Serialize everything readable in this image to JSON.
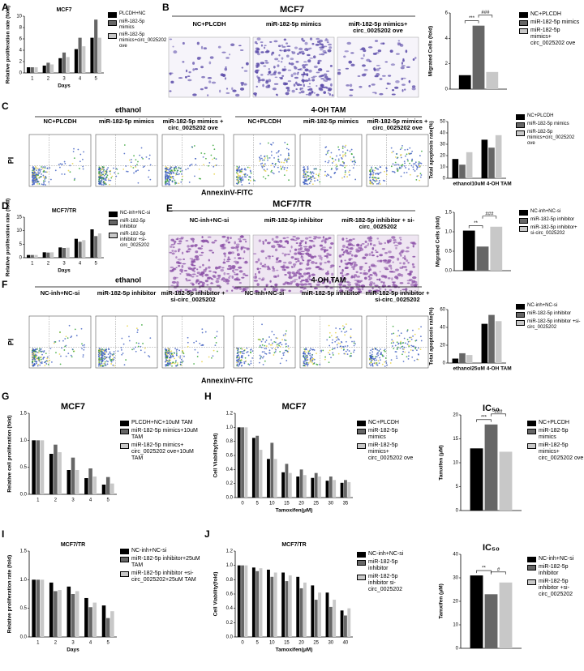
{
  "panel_labels": [
    "A",
    "B",
    "C",
    "D",
    "E",
    "F",
    "G",
    "H",
    "I",
    "J"
  ],
  "image_panels": [
    {
      "title": "MCF7",
      "labels": [
        "NC+PLCDH",
        "miR-182-5p mimics",
        "miR-182-5p mimics+ circ_0025202 ove"
      ]
    },
    {
      "title": "MCF7/TR",
      "labels": [
        "NC-inh+NC-si",
        "miR-182-5p inhibitor",
        "miR-182-5p inhibitor + si-circ_0025202"
      ]
    }
  ],
  "flow_panels": [
    {
      "groups": [
        "ethanol",
        "4-OH TAM"
      ],
      "labels": [
        "NC+PLCDH",
        "miR-182-5p mimics",
        "miR-182-5p mimics + circ_0025202 ove",
        "NC+PLCDH",
        "miR-182-5p mimics",
        "miR-182-5p mimics + circ_0025202 ove"
      ],
      "y_label": "PI",
      "x_label": "AnnexinV-FITC"
    },
    {
      "groups": [
        "ethanol",
        "4-OH TAM"
      ],
      "labels": [
        "NC-inh+NC-si",
        "miR-182-5p inhibitor",
        "miR-182-5p inhibitor + si-circ_0025202",
        "NC-inh+NC-si",
        "miR-182-5p inhibitor",
        "miR-182-5p inhibitor + si-circ_0025202"
      ],
      "y_label": "PI",
      "x_label": "AnnexinV-FITC"
    }
  ],
  "chart_data": [
    {
      "type": "bar",
      "title": "MCF7",
      "y_label": "Relative proliferation rate (fold)",
      "x_label": "Days",
      "categories": [
        "1",
        "2",
        "3",
        "4",
        "5"
      ],
      "ylim": [
        0,
        10
      ],
      "yticks": [
        0,
        2,
        4,
        6,
        8,
        10
      ],
      "series": [
        {
          "name": "PLCDH+NC",
          "color": "#000000",
          "values": [
            1,
            1.3,
            2.6,
            4.2,
            6.2
          ]
        },
        {
          "name": "miR-182-5p mimics",
          "color": "#666666",
          "values": [
            1,
            1.8,
            3.6,
            6.2,
            9.4
          ]
        },
        {
          "name": "miR-182-5p mimics+circ_0025202 ove",
          "color": "#c8c8c8",
          "values": [
            1,
            1.5,
            2.8,
            4.7,
            6.2
          ]
        }
      ]
    },
    {
      "type": "bar",
      "y_label": "Migrated Cells (fold)",
      "categories": [
        null
      ],
      "ylim": [
        0,
        6
      ],
      "yticks": [
        0,
        2,
        4,
        6
      ],
      "annotations": [
        "***",
        "###"
      ],
      "series": [
        {
          "name": "NC+PLCDH",
          "color": "#000000",
          "values": [
            1.1
          ]
        },
        {
          "name": "miR-182-5p mimics",
          "color": "#666666",
          "values": [
            5.0
          ]
        },
        {
          "name": "miR-182-5p mimics+ circ_0025202 ove",
          "color": "#c8c8c8",
          "values": [
            1.35
          ]
        }
      ]
    },
    {
      "type": "bar",
      "y_label": "Total apoptosis rate(%)",
      "categories": [
        "ethanol",
        "10uM 4-OH TAM"
      ],
      "ylim": [
        0,
        50
      ],
      "yticks": [
        0,
        10,
        20,
        30,
        40,
        50
      ],
      "series": [
        {
          "name": "NC+PLCDH",
          "color": "#000000",
          "values": [
            17,
            34
          ]
        },
        {
          "name": "miR-182-5p mimics",
          "color": "#666666",
          "values": [
            12,
            27
          ]
        },
        {
          "name": "miR-182-5p mimics+circ_0025202 ove",
          "color": "#c8c8c8",
          "values": [
            23,
            38
          ]
        }
      ]
    },
    {
      "type": "bar",
      "title": "MCF7/TR",
      "y_label": "Relative proliferation rate (fold)",
      "x_label": "Days",
      "categories": [
        "1",
        "2",
        "3",
        "4",
        "5"
      ],
      "ylim": [
        0,
        15
      ],
      "yticks": [
        0,
        5,
        10,
        15
      ],
      "series": [
        {
          "name": "NC-inh+NC-si",
          "color": "#000000",
          "values": [
            1,
            2,
            3.8,
            7,
            10.5
          ]
        },
        {
          "name": "miR-182-5p inhibitor",
          "color": "#666666",
          "values": [
            1,
            1.9,
            3.6,
            5.9,
            8
          ]
        },
        {
          "name": "miR-182-5p inhibitor +si-circ_0025202",
          "color": "#c8c8c8",
          "values": [
            1,
            2,
            3.7,
            6.5,
            9
          ]
        }
      ]
    },
    {
      "type": "bar",
      "y_label": "Migrated Cells (fold)",
      "categories": [
        null
      ],
      "ylim": [
        0,
        1.5
      ],
      "yticks": [
        {
          "value": 0,
          "label": "0.0"
        },
        0.5,
        {
          "value": 1,
          "label": "1.0"
        },
        1.5
      ],
      "annotations": [
        "**",
        "###"
      ],
      "series": [
        {
          "name": "NC-inh+NC-si",
          "color": "#000000",
          "values": [
            1.03
          ]
        },
        {
          "name": "miR-182-5p inhibitor",
          "color": "#666666",
          "values": [
            0.62
          ]
        },
        {
          "name": "miR-182-5p inhibitor+ si-circ_0025202",
          "color": "#c8c8c8",
          "values": [
            1.13
          ]
        }
      ]
    },
    {
      "type": "bar",
      "y_label": "Total apoptosis rate(%)",
      "categories": [
        "ethanol",
        "25uM 4-OH TAM"
      ],
      "ylim": [
        0,
        60
      ],
      "yticks": [
        0,
        20,
        40,
        60
      ],
      "series": [
        {
          "name": "NC-inh+NC-si",
          "color": "#000000",
          "values": [
            5,
            44
          ]
        },
        {
          "name": "miR-182-5p inhibitor",
          "color": "#666666",
          "values": [
            11,
            54
          ]
        },
        {
          "name": "miR-182-5p inhibitor +si-circ_0025202",
          "color": "#c8c8c8",
          "values": [
            9,
            47
          ]
        }
      ]
    },
    {
      "type": "bar",
      "title": "MCF7",
      "y_label": "Relative cell proliferation (fold)",
      "categories": [
        "1",
        "2",
        "3",
        "4",
        "5"
      ],
      "ylim": [
        0,
        1.5
      ],
      "yticks": [
        {
          "value": 0,
          "label": "0.0"
        },
        0.5,
        {
          "value": 1,
          "label": "1.0"
        },
        1.5
      ],
      "series": [
        {
          "name": "PLCDH+NC+10uM TAM",
          "color": "#000000",
          "values": [
            1,
            0.75,
            0.45,
            0.3,
            0.18
          ]
        },
        {
          "name": "miR-182-5p mimics+10uM TAM",
          "color": "#666666",
          "values": [
            1,
            0.92,
            0.68,
            0.48,
            0.32
          ]
        },
        {
          "name": "miR-182-5p mimics+ circ_0025202 ove+10uM TAM",
          "color": "#c8c8c8",
          "values": [
            1,
            0.78,
            0.45,
            0.33,
            0.2
          ]
        }
      ]
    },
    {
      "type": "bar",
      "title": "MCF7",
      "y_label": "Cell Viability(fold)",
      "x_label": "Tamoxifen(μM)",
      "categories": [
        "0",
        "5",
        "10",
        "15",
        "20",
        "25",
        "30",
        "35"
      ],
      "ylim": [
        0,
        1.2
      ],
      "yticks": [
        {
          "value": 0,
          "label": "0.0"
        },
        0.2,
        0.4,
        0.6,
        0.8,
        {
          "value": 1,
          "label": "1.0"
        },
        1.2
      ],
      "series": [
        {
          "name": "NC+PLCDH",
          "color": "#000000",
          "values": [
            1,
            0.85,
            0.55,
            0.36,
            0.3,
            0.28,
            0.24,
            0.21
          ]
        },
        {
          "name": "miR-182-5p mimics",
          "color": "#666666",
          "values": [
            1,
            0.88,
            0.78,
            0.48,
            0.4,
            0.35,
            0.3,
            0.25
          ]
        },
        {
          "name": "miR-182-5p mimics+ circ_0025202 ove",
          "color": "#c8c8c8",
          "values": [
            1,
            0.68,
            0.55,
            0.35,
            0.32,
            0.3,
            0.25,
            0.22
          ]
        }
      ]
    },
    {
      "type": "bar",
      "title": "IC₅₀",
      "y_label": "Tamxifen (μM)",
      "categories": [
        null
      ],
      "ylim": [
        0,
        20
      ],
      "yticks": [
        0,
        5,
        10,
        15,
        20
      ],
      "annotations": [
        "***",
        "###"
      ],
      "series": [
        {
          "name": "NC+PLCDH",
          "color": "#000000",
          "values": [
            13
          ]
        },
        {
          "name": "miR-182-5p mimics",
          "color": "#666666",
          "values": [
            18
          ]
        },
        {
          "name": "miR-182-5p mimics+ circ_0025202 ove",
          "color": "#c8c8c8",
          "values": [
            12.3
          ]
        }
      ]
    },
    {
      "type": "bar",
      "title": "MCF7/TR",
      "y_label": "Relative proliferation rate (fold)",
      "x_label": "Days",
      "categories": [
        "1",
        "2",
        "3",
        "4",
        "5"
      ],
      "ylim": [
        0,
        1.5
      ],
      "yticks": [
        {
          "value": 0,
          "label": "0.0"
        },
        0.5,
        {
          "value": 1,
          "label": "1.0"
        },
        1.5
      ],
      "series": [
        {
          "name": "NC-inh+NC-si",
          "color": "#000000",
          "values": [
            1,
            0.95,
            0.88,
            0.68,
            0.55
          ]
        },
        {
          "name": "miR-182-5p inhibitor+25uM TAM",
          "color": "#666666",
          "values": [
            1,
            0.8,
            0.75,
            0.52,
            0.33
          ]
        },
        {
          "name": "miR-182-5p inhibitor +si-circ_0025202+25uM TAM",
          "color": "#c8c8c8",
          "values": [
            1,
            0.82,
            0.8,
            0.6,
            0.45
          ]
        }
      ]
    },
    {
      "type": "bar",
      "title": "MCF7/TR",
      "y_label": "Cell Viability(fold)",
      "x_label": "Tamoxifen(μM)",
      "categories": [
        "0",
        "5",
        "10",
        "15",
        "20",
        "25",
        "30",
        "40"
      ],
      "ylim": [
        0,
        1.2
      ],
      "yticks": [
        {
          "value": 0,
          "label": "0.0"
        },
        0.2,
        0.4,
        0.6,
        0.8,
        {
          "value": 1,
          "label": "1.0"
        },
        1.2
      ],
      "series": [
        {
          "name": "NC-inh+NC-si",
          "color": "#000000",
          "values": [
            1,
            0.97,
            0.94,
            0.9,
            0.84,
            0.72,
            0.62,
            0.37
          ]
        },
        {
          "name": "miR-182-5p inhibitor",
          "color": "#666666",
          "values": [
            1,
            0.92,
            0.84,
            0.78,
            0.68,
            0.52,
            0.42,
            0.3
          ]
        },
        {
          "name": "miR-182-5p inhibitor si-circ_0025202",
          "color": "#c8c8c8",
          "values": [
            1,
            0.96,
            0.9,
            0.86,
            0.76,
            0.62,
            0.52,
            0.4
          ]
        }
      ]
    },
    {
      "type": "bar",
      "title": "IC₅₀",
      "y_label": "Tamxifen (μM)",
      "categories": [
        null
      ],
      "ylim": [
        0,
        40
      ],
      "yticks": [
        0,
        10,
        20,
        30,
        40
      ],
      "annotations": [
        "**",
        "#"
      ],
      "series": [
        {
          "name": "NC-inh+NC-si",
          "color": "#000000",
          "values": [
            31
          ]
        },
        {
          "name": "miR-182-5p inhibitor",
          "color": "#666666",
          "values": [
            23
          ]
        },
        {
          "name": "miR-182-5p inhibitor +si-circ_0025202",
          "color": "#c8c8c8",
          "values": [
            28
          ]
        }
      ]
    }
  ]
}
